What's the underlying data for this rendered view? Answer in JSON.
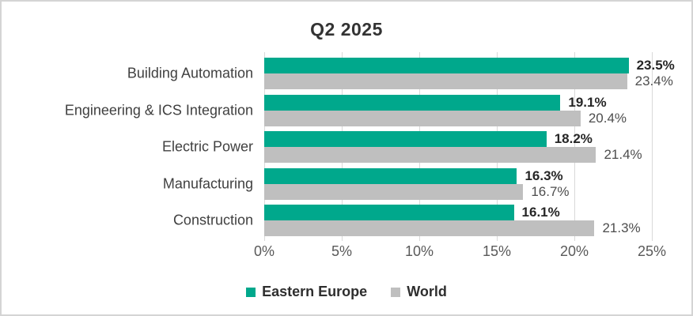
{
  "chart_data": {
    "type": "bar",
    "orientation": "horizontal",
    "title": "Q2 2025",
    "categories": [
      "Building Automation",
      "Engineering & ICS Integration",
      "Electric Power",
      "Manufacturing",
      "Construction"
    ],
    "series": [
      {
        "name": "Eastern Europe",
        "color": "#00a88c",
        "values": [
          23.5,
          19.1,
          18.2,
          16.3,
          16.1
        ],
        "value_labels": [
          "23.5%",
          "19.1%",
          "18.2%",
          "16.3%",
          "16.1%"
        ]
      },
      {
        "name": "World",
        "color": "#bfbfbf",
        "values": [
          23.4,
          20.4,
          21.4,
          16.7,
          21.3
        ],
        "value_labels": [
          "23.4%",
          "20.4%",
          "21.4%",
          "16.7%",
          "21.3%"
        ]
      }
    ],
    "x_ticks": [
      {
        "value": 0,
        "label": "0%"
      },
      {
        "value": 5,
        "label": "5%"
      },
      {
        "value": 10,
        "label": "10%"
      },
      {
        "value": 15,
        "label": "15%"
      },
      {
        "value": 20,
        "label": "20%"
      },
      {
        "value": 25,
        "label": "25%"
      }
    ],
    "xlim": [
      0,
      25
    ],
    "grid": true,
    "legend_position": "bottom"
  },
  "colors": {
    "accent_green": "#00a88c",
    "bar_gray": "#bfbfbf",
    "gridline": "#d9d9d9",
    "title_text": "#333333",
    "category_text": "#404040",
    "axis_text": "#595959",
    "value_bold_text": "#262626",
    "value_regular_text": "#4d4d4d",
    "frame_border": "#d4d4d4"
  }
}
